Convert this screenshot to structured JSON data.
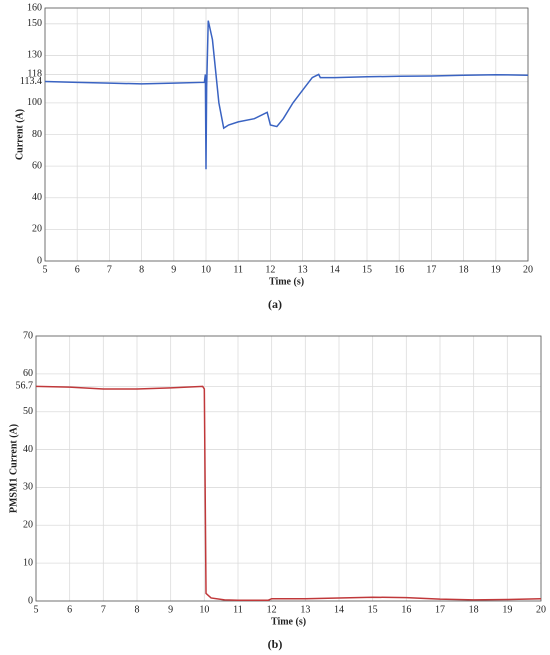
{
  "chart_data": [
    {
      "type": "line",
      "caption": "(a)",
      "xlabel": "Time (s)",
      "ylabel": "Current (A)",
      "x": [
        5,
        6,
        7,
        8,
        9,
        9.95,
        9.98,
        10.0,
        10.02,
        10.07,
        10.2,
        10.4,
        10.55,
        10.7,
        11,
        11.5,
        11.9,
        12.0,
        12.2,
        12.4,
        12.7,
        13,
        13.3,
        13.5,
        13.55,
        14,
        15,
        16,
        17,
        18,
        19,
        20
      ],
      "series": [
        {
          "color": "#3a63c2",
          "values": [
            113.5,
            113,
            112.5,
            112,
            112.5,
            113,
            118,
            58,
            110,
            152,
            140,
            100,
            84,
            86,
            88,
            90,
            94,
            86,
            85,
            90,
            100,
            108,
            116,
            118,
            116,
            116,
            116.5,
            116.8,
            117,
            117.5,
            117.8,
            117.5
          ]
        }
      ],
      "xlim": [
        5,
        20
      ],
      "ylim": [
        0,
        160
      ],
      "xticks": [
        5,
        6,
        7,
        8,
        9,
        10,
        11,
        12,
        13,
        14,
        15,
        16,
        17,
        18,
        19,
        20
      ],
      "yticks": [
        0,
        20,
        40,
        60,
        80,
        100,
        113.4,
        118,
        130,
        150,
        160
      ],
      "grid": true
    },
    {
      "type": "line",
      "caption": "(b)",
      "xlabel": "Time (s)",
      "ylabel": "PMSM1 Current (A)",
      "x": [
        5,
        6,
        7,
        8,
        9,
        9.95,
        10.0,
        10.05,
        10.2,
        10.6,
        11,
        11.9,
        12,
        13,
        14,
        15,
        16,
        17,
        18,
        19,
        20
      ],
      "series": [
        {
          "color": "#c0383a",
          "values": [
            56.7,
            56.5,
            56,
            56,
            56.3,
            56.7,
            56,
            2,
            0.8,
            0.3,
            0.2,
            0.2,
            0.6,
            0.6,
            0.8,
            1,
            0.9,
            0.5,
            0.3,
            0.4,
            0.6
          ]
        }
      ],
      "xlim": [
        5,
        20
      ],
      "ylim": [
        0,
        70
      ],
      "xticks": [
        5,
        6,
        7,
        8,
        9,
        10,
        11,
        12,
        13,
        14,
        15,
        16,
        17,
        18,
        19,
        20
      ],
      "yticks": [
        0,
        10,
        20,
        30,
        40,
        50,
        56.7,
        60,
        70
      ],
      "grid": true
    }
  ]
}
